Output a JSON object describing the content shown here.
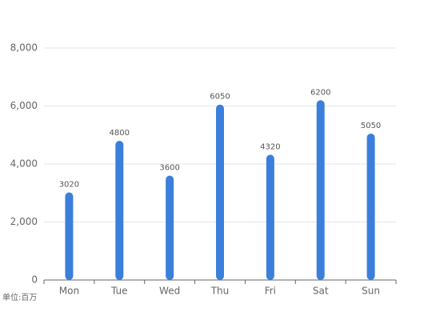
{
  "chart_data": {
    "type": "bar",
    "categories": [
      "Mon",
      "Tue",
      "Wed",
      "Thu",
      "Fri",
      "Sat",
      "Sun"
    ],
    "values": [
      3020,
      4800,
      3600,
      6050,
      4320,
      6200,
      5050
    ],
    "color": "#3b7fdb",
    "ylim": [
      0,
      8000
    ],
    "yticks": [
      0,
      {
        "value": 2000,
        "label": "2,000"
      },
      {
        "value": 4000,
        "label": "4,000"
      },
      {
        "value": 6000,
        "label": "6,000"
      },
      {
        "value": 8000,
        "label": "8,000"
      }
    ],
    "grid": true,
    "unit_label": "单位:百万"
  }
}
